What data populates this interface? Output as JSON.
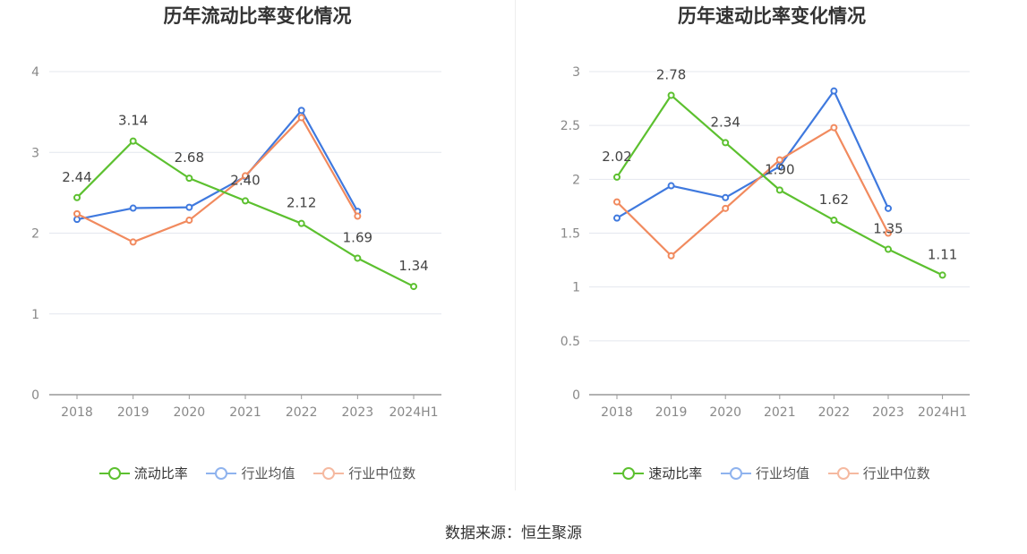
{
  "chart_data": [
    {
      "type": "line",
      "title": "历年流动比率变化情况",
      "categories": [
        "2018",
        "2019",
        "2020",
        "2021",
        "2022",
        "2023",
        "2024H1"
      ],
      "ylim": [
        0,
        4
      ],
      "yticks": [
        "0",
        "1",
        "2",
        "3",
        "4"
      ],
      "legend_position": "bottom",
      "series": [
        {
          "name": "流动比率",
          "color": "#5cc02f",
          "labeled": true,
          "values": [
            2.44,
            3.14,
            2.68,
            2.4,
            2.12,
            1.69,
            1.34
          ],
          "labels": [
            "2.44",
            "3.14",
            "2.68",
            "2.40",
            "2.12",
            "1.69",
            "1.34"
          ]
        },
        {
          "name": "行业均值",
          "color": "#3f79de",
          "values": [
            2.17,
            2.31,
            2.32,
            2.7,
            3.52,
            2.27,
            null
          ]
        },
        {
          "name": "行业中位数",
          "color": "#f18a5e",
          "values": [
            2.24,
            1.89,
            2.16,
            2.71,
            3.43,
            2.21,
            null
          ]
        }
      ]
    },
    {
      "type": "line",
      "title": "历年速动比率变化情况",
      "categories": [
        "2018",
        "2019",
        "2020",
        "2021",
        "2022",
        "2023",
        "2024H1"
      ],
      "ylim": [
        0,
        3
      ],
      "yticks": [
        "0",
        "0.5",
        "1",
        "1.5",
        "2",
        "2.5",
        "3"
      ],
      "legend_position": "bottom",
      "series": [
        {
          "name": "速动比率",
          "color": "#5cc02f",
          "labeled": true,
          "values": [
            2.02,
            2.78,
            2.34,
            1.9,
            1.62,
            1.35,
            1.11
          ],
          "labels": [
            "2.02",
            "2.78",
            "2.34",
            "1.90",
            "1.62",
            "1.35",
            "1.11"
          ]
        },
        {
          "name": "行业均值",
          "color": "#3f79de",
          "values": [
            1.64,
            1.94,
            1.83,
            2.12,
            2.82,
            1.73,
            null
          ]
        },
        {
          "name": "行业中位数",
          "color": "#f18a5e",
          "values": [
            1.79,
            1.29,
            1.73,
            2.18,
            2.48,
            1.5,
            null
          ]
        }
      ]
    }
  ],
  "legend_colors": {
    "series_0": "#5cc02f",
    "series_1": "#8fb3ee",
    "series_2": "#f5b9a0"
  },
  "source": "数据来源：恒生聚源"
}
